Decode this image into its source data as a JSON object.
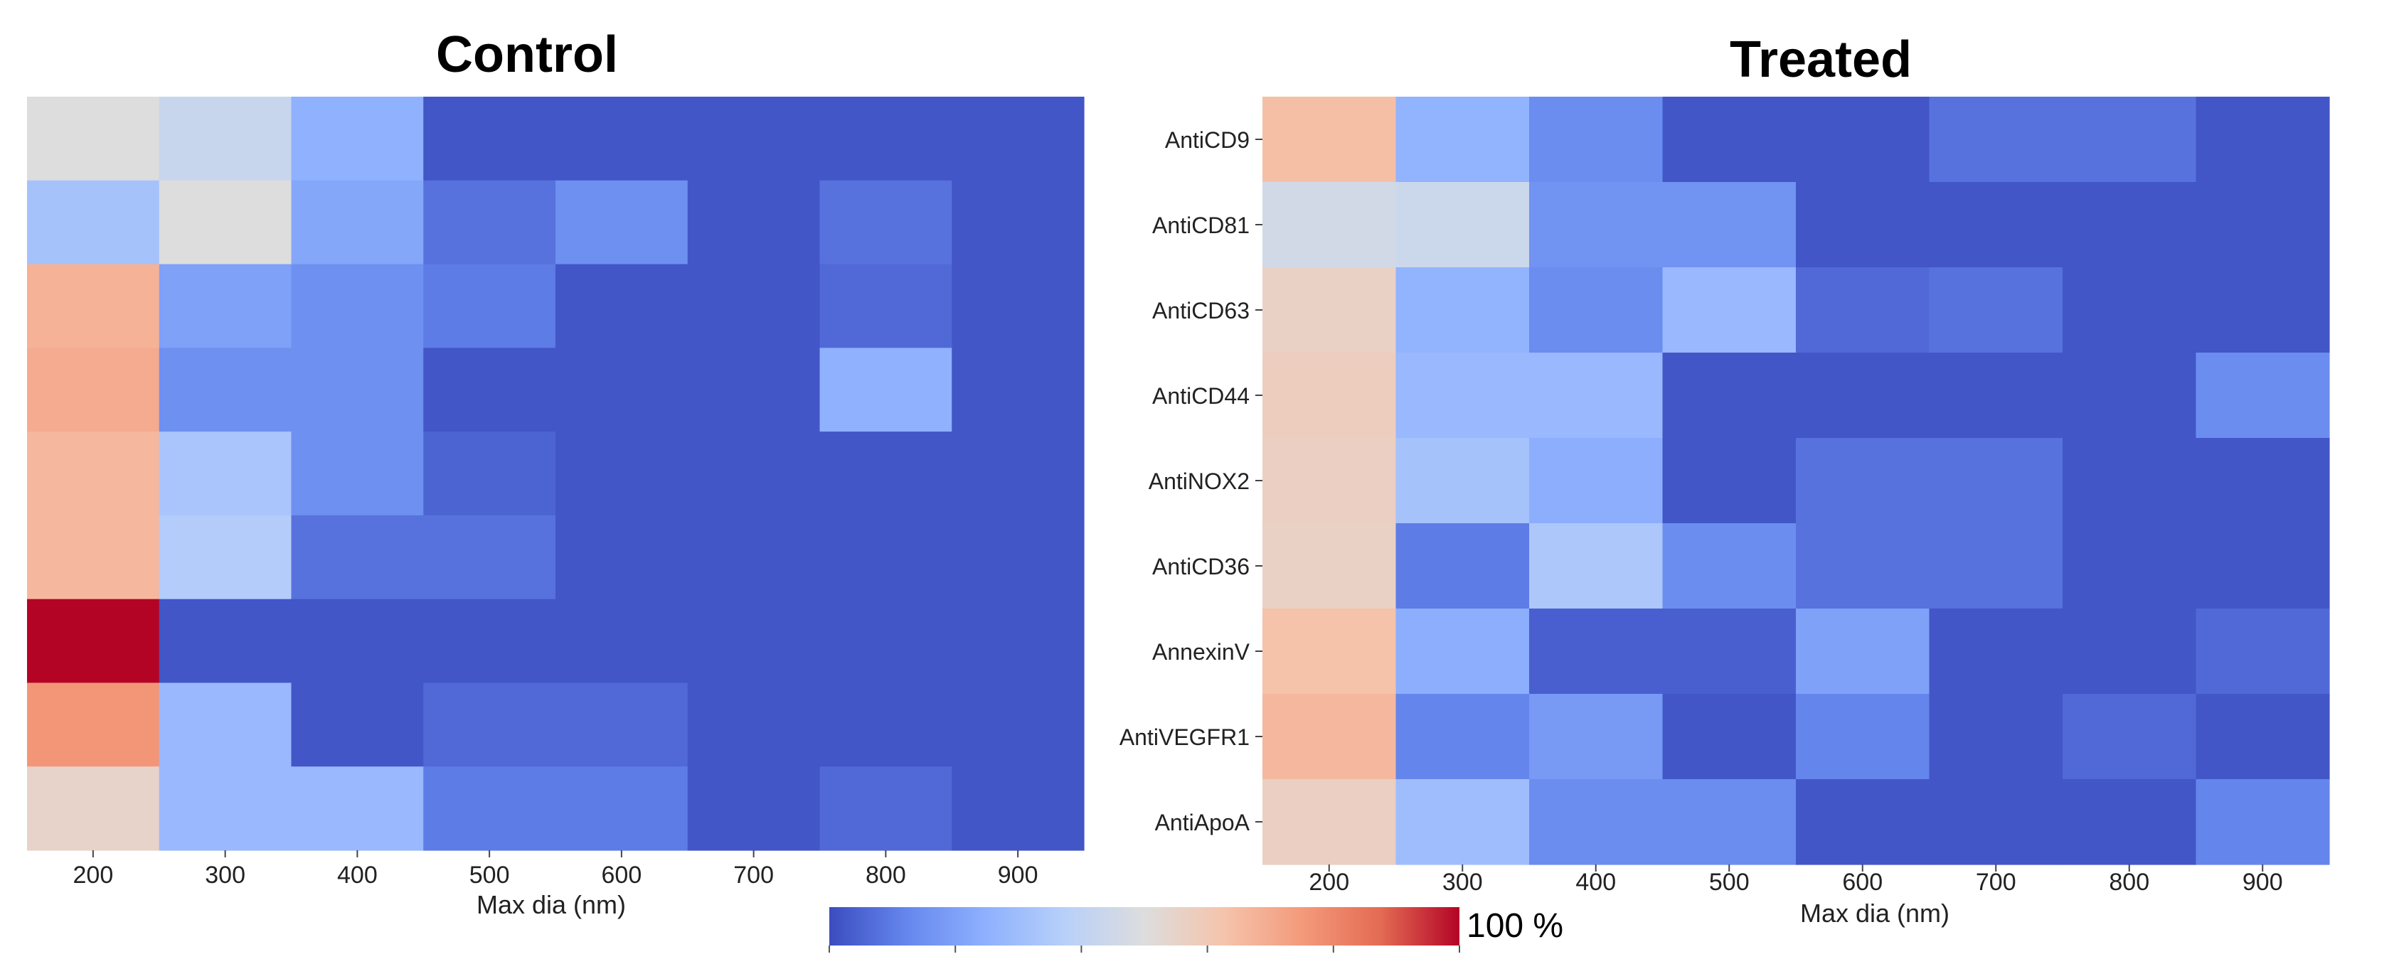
{
  "chart_data": [
    {
      "type": "heatmap",
      "title": "Control",
      "xlabel": "Max dia (nm)",
      "ylabel": "",
      "x_ticks": [
        "200",
        "300",
        "400",
        "500",
        "600",
        "700",
        "800",
        "900"
      ],
      "y_ticks": [],
      "rows": 9,
      "values": [
        [
          0.5,
          0.43,
          0.25,
          0.02,
          0.02,
          0.02,
          0.02,
          0.02
        ],
        [
          0.32,
          0.5,
          0.22,
          0.08,
          0.15,
          0.02,
          0.08,
          0.02
        ],
        [
          0.68,
          0.2,
          0.15,
          0.1,
          0.02,
          0.02,
          0.06,
          0.02
        ],
        [
          0.7,
          0.15,
          0.15,
          0.02,
          0.02,
          0.02,
          0.25,
          0.02
        ],
        [
          0.66,
          0.33,
          0.15,
          0.05,
          0.02,
          0.02,
          0.02,
          0.02
        ],
        [
          0.66,
          0.36,
          0.08,
          0.08,
          0.02,
          0.02,
          0.02,
          0.02
        ],
        [
          1.0,
          0.02,
          0.02,
          0.02,
          0.02,
          0.02,
          0.02,
          0.02
        ],
        [
          0.76,
          0.28,
          0.02,
          0.06,
          0.06,
          0.02,
          0.02,
          0.02
        ],
        [
          0.55,
          0.28,
          0.28,
          0.1,
          0.1,
          0.02,
          0.06,
          0.02
        ]
      ]
    },
    {
      "type": "heatmap",
      "title": "Treated",
      "xlabel": "Max dia (nm)",
      "ylabel": "",
      "x_ticks": [
        "200",
        "300",
        "400",
        "500",
        "600",
        "700",
        "800",
        "900"
      ],
      "y_ticks": [
        "AntiCD9",
        "AntiCD81",
        "AntiCD63",
        "AntiCD44",
        "AntiNOX2",
        "AntiCD36",
        "AnnexinV",
        "AntiVEGFR1",
        "AntiApoA"
      ],
      "values": [
        [
          0.64,
          0.26,
          0.14,
          0.02,
          0.02,
          0.08,
          0.08,
          0.02
        ],
        [
          0.46,
          0.44,
          0.16,
          0.16,
          0.02,
          0.02,
          0.02,
          0.02
        ],
        [
          0.56,
          0.26,
          0.14,
          0.28,
          0.06,
          0.08,
          0.02,
          0.02
        ],
        [
          0.58,
          0.28,
          0.28,
          0.02,
          0.02,
          0.02,
          0.02,
          0.14
        ],
        [
          0.57,
          0.32,
          0.24,
          0.02,
          0.08,
          0.08,
          0.02,
          0.02
        ],
        [
          0.56,
          0.1,
          0.34,
          0.14,
          0.08,
          0.08,
          0.02,
          0.02
        ],
        [
          0.63,
          0.24,
          0.04,
          0.04,
          0.2,
          0.02,
          0.02,
          0.06
        ],
        [
          0.66,
          0.12,
          0.18,
          0.02,
          0.12,
          0.02,
          0.06,
          0.02
        ],
        [
          0.57,
          0.3,
          0.14,
          0.14,
          0.02,
          0.02,
          0.02,
          0.12
        ]
      ]
    }
  ],
  "colorbar": {
    "label": "100 %",
    "colors": [
      "#3b4cc0",
      "#6688ee",
      "#8fb1fe",
      "#b8d0f9",
      "#dddddd",
      "#f5c4ac",
      "#f49a7b",
      "#e36b53",
      "#b40426"
    ],
    "ticks": 6
  }
}
